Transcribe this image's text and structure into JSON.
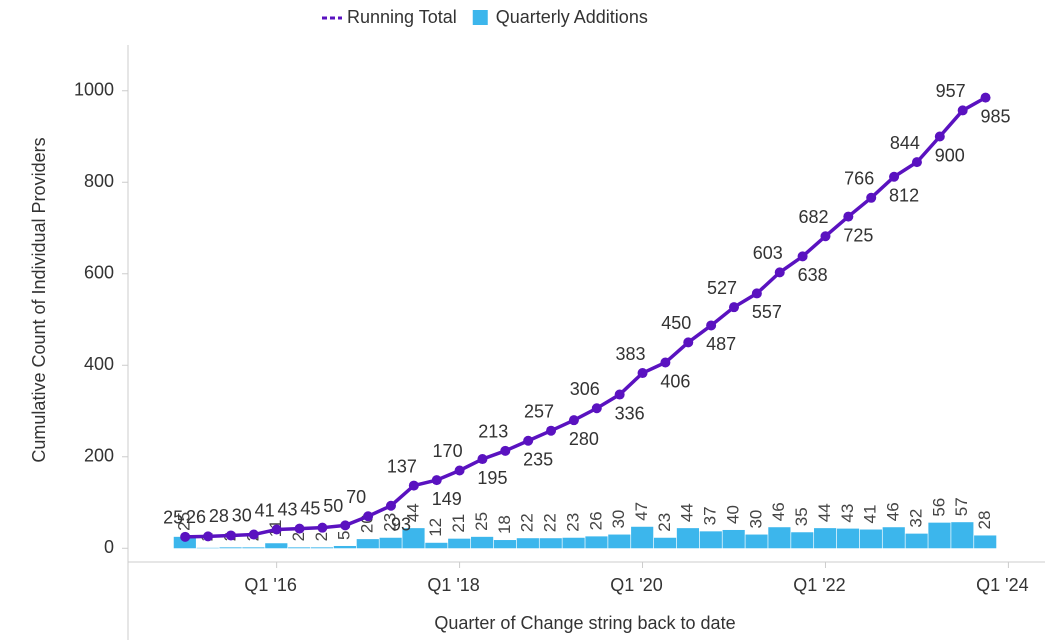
{
  "chart_data": {
    "type": "line-bar",
    "x_label": "Quarter of Change string back to date",
    "y_label": "Cumulative Count of Individual Providers",
    "categories": [
      "Q1 '15",
      "Q2 '15",
      "Q3 '15",
      "Q4 '15",
      "Q1 '16",
      "Q2 '16",
      "Q3 '16",
      "Q4 '16",
      "Q1 '17",
      "Q2 '17",
      "Q3 '17",
      "Q4 '17",
      "Q1 '18",
      "Q2 '18",
      "Q3 '18",
      "Q4 '18",
      "Q1 '19",
      "Q2 '19",
      "Q3 '19",
      "Q4 '19",
      "Q1 '20",
      "Q2 '20",
      "Q3 '20",
      "Q4 '20",
      "Q1 '21",
      "Q2 '21",
      "Q3 '21",
      "Q4 '21",
      "Q1 '22",
      "Q2 '22",
      "Q3 '22",
      "Q4 '22",
      "Q1 '23",
      "Q2 '23",
      "Q3 '23",
      "Q4 '23"
    ],
    "series": [
      {
        "name": "Running Total",
        "color": "#5a12c0",
        "kind": "line",
        "values": [
          25,
          26,
          28,
          30,
          41,
          43,
          45,
          50,
          70,
          93,
          137,
          149,
          170,
          195,
          213,
          235,
          257,
          280,
          306,
          336,
          383,
          406,
          450,
          487,
          527,
          557,
          603,
          638,
          682,
          725,
          766,
          812,
          844,
          900,
          957,
          985
        ]
      },
      {
        "name": "Quarterly Additions",
        "color": "#3cb6ec",
        "kind": "bar",
        "values": [
          25,
          1,
          2,
          2,
          11,
          2,
          2,
          5,
          20,
          23,
          44,
          12,
          21,
          25,
          18,
          22,
          22,
          23,
          26,
          30,
          47,
          23,
          44,
          37,
          40,
          30,
          46,
          35,
          44,
          43,
          41,
          46,
          32,
          56,
          57,
          28
        ]
      }
    ],
    "xlim": [
      -2.5,
      37.6
    ],
    "xticks": [
      {
        "value": 4,
        "label": "Q1 '16"
      },
      {
        "value": 12,
        "label": "Q1 '18"
      },
      {
        "value": 20,
        "label": "Q1 '20"
      },
      {
        "value": 28,
        "label": "Q1 '22"
      },
      {
        "value": 36,
        "label": "Q1 '24"
      }
    ],
    "ylim": [
      -30,
      1100
    ],
    "yticks": [
      0,
      200,
      400,
      600,
      800,
      1000
    ],
    "legend": "top"
  }
}
